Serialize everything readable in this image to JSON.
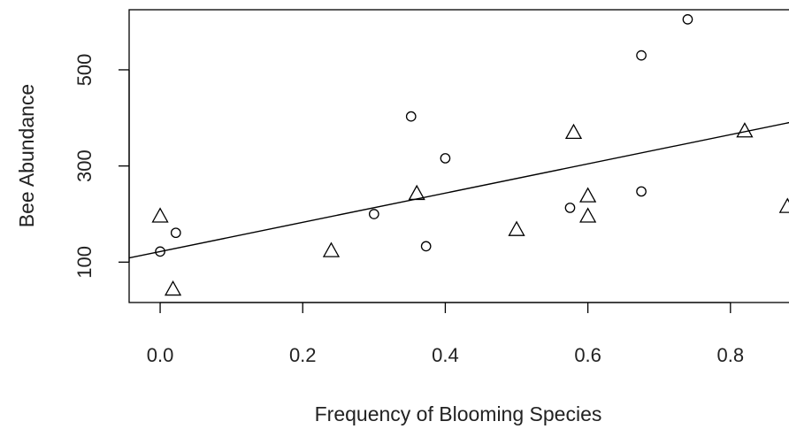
{
  "chart_data": {
    "type": "scatter",
    "title": "",
    "xlabel": "Frequency of Blooming Species",
    "ylabel": "Bee Abundance",
    "xlim": [
      -0.0435,
      0.8995
    ],
    "ylim": [
      16,
      625
    ],
    "x_ticks": [
      0.0,
      0.2,
      0.4,
      0.6,
      0.8
    ],
    "x_tick_labels": [
      "0.0",
      "0.2",
      "0.4",
      "0.6",
      "0.8"
    ],
    "y_ticks": [
      100,
      300,
      500
    ],
    "y_tick_labels": [
      "100",
      "300",
      "500"
    ],
    "grid": false,
    "legend": "none",
    "series": [
      {
        "marker": "circle",
        "points": [
          {
            "x": 0.0,
            "y": 122
          },
          {
            "x": 0.022,
            "y": 161
          },
          {
            "x": 0.3,
            "y": 200
          },
          {
            "x": 0.352,
            "y": 403
          },
          {
            "x": 0.373,
            "y": 133
          },
          {
            "x": 0.4,
            "y": 316
          },
          {
            "x": 0.575,
            "y": 213
          },
          {
            "x": 0.675,
            "y": 530
          },
          {
            "x": 0.675,
            "y": 247
          },
          {
            "x": 0.74,
            "y": 605
          }
        ]
      },
      {
        "marker": "triangle",
        "points": [
          {
            "x": 0.0,
            "y": 196
          },
          {
            "x": 0.018,
            "y": 44
          },
          {
            "x": 0.24,
            "y": 124
          },
          {
            "x": 0.36,
            "y": 243
          },
          {
            "x": 0.5,
            "y": 168
          },
          {
            "x": 0.58,
            "y": 370
          },
          {
            "x": 0.6,
            "y": 238
          },
          {
            "x": 0.6,
            "y": 196
          },
          {
            "x": 0.82,
            "y": 373
          },
          {
            "x": 0.88,
            "y": 216
          }
        ]
      }
    ],
    "fit_line": {
      "intercept": 122,
      "slope": 304
    },
    "colors": {
      "marker": "#000000",
      "axis": "#000000"
    }
  }
}
